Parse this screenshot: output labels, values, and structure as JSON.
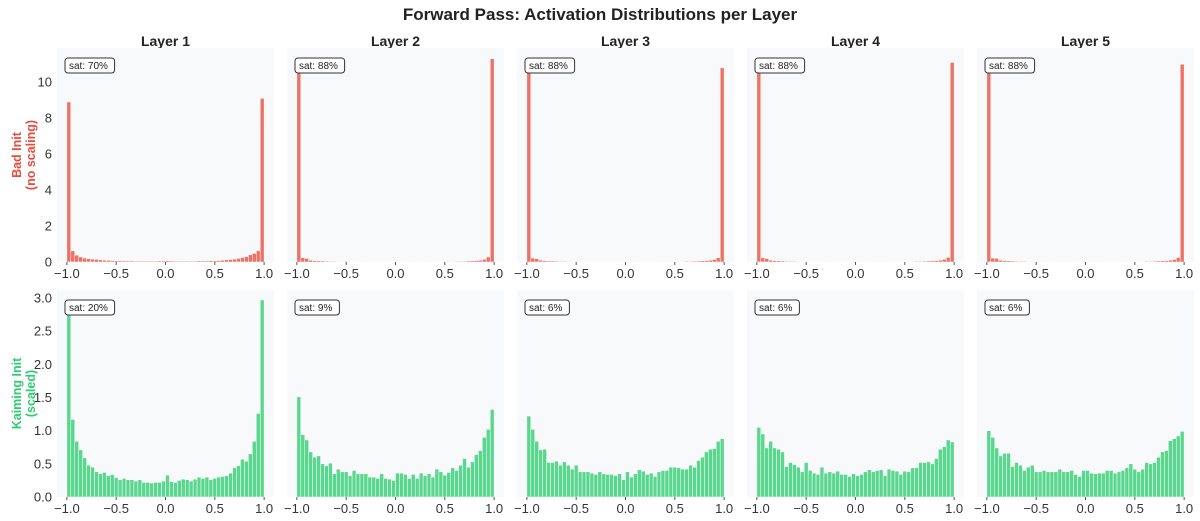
{
  "title": "Forward Pass: Activation Distributions per Layer",
  "colors": {
    "bad": "#e74c3c",
    "good": "#2ecc71",
    "plot_bg": "#f8f9fa"
  },
  "chart_data": {
    "type": "bar",
    "subtype": "histogram-grid",
    "grid": false,
    "bins": {
      "start": -1.0,
      "end": 1.0,
      "count": 50
    },
    "xlim": [
      -1.1,
      1.1
    ],
    "x_ticks": [
      "−1.0",
      "−0.5",
      "0.0",
      "0.5",
      "1.0"
    ],
    "x_tick_values": [
      -1.0,
      -0.5,
      0.0,
      0.5,
      1.0
    ],
    "columns": [
      "Layer 1",
      "Layer 2",
      "Layer 3",
      "Layer 4",
      "Layer 5"
    ],
    "rows": [
      {
        "label_line1": "Bad Init",
        "label_line2": "(no scaling)",
        "color": "#e74c3c",
        "ylim": [
          0,
          11.9
        ],
        "y_ticks": [
          "0",
          "2",
          "4",
          "6",
          "8",
          "10"
        ],
        "y_tick_values": [
          0,
          2,
          4,
          6,
          8,
          10
        ],
        "panels": [
          {
            "annotation": "sat: 70%",
            "values": [
              8.9,
              0.62,
              0.38,
              0.28,
              0.22,
              0.18,
              0.16,
              0.15,
              0.12,
              0.1,
              0.09,
              0.08,
              0.07,
              0.07,
              0.06,
              0.06,
              0.06,
              0.05,
              0.05,
              0.05,
              0.05,
              0.05,
              0.05,
              0.06,
              0.06,
              0.07,
              0.06,
              0.05,
              0.05,
              0.05,
              0.05,
              0.05,
              0.05,
              0.06,
              0.06,
              0.06,
              0.07,
              0.07,
              0.08,
              0.1,
              0.12,
              0.14,
              0.16,
              0.2,
              0.25,
              0.3,
              0.4,
              0.48,
              0.62,
              9.1
            ]
          },
          {
            "annotation": "sat: 88%",
            "values": [
              10.96,
              0.24,
              0.2,
              0.1,
              0.08,
              0.07,
              0.06,
              0.05,
              0.04,
              0.04,
              0.03,
              0.03,
              0.04,
              0.03,
              0.03,
              0.02,
              0.03,
              0.03,
              0.02,
              0.03,
              0.03,
              0.03,
              0.02,
              0.03,
              0.03,
              0.03,
              0.03,
              0.02,
              0.03,
              0.03,
              0.03,
              0.02,
              0.03,
              0.03,
              0.03,
              0.03,
              0.02,
              0.03,
              0.03,
              0.03,
              0.04,
              0.04,
              0.05,
              0.06,
              0.07,
              0.08,
              0.1,
              0.15,
              0.28,
              11.3
            ]
          },
          {
            "annotation": "sat: 88%",
            "values": [
              10.9,
              0.22,
              0.18,
              0.1,
              0.08,
              0.06,
              0.06,
              0.05,
              0.04,
              0.04,
              0.03,
              0.03,
              0.03,
              0.03,
              0.02,
              0.03,
              0.03,
              0.03,
              0.02,
              0.03,
              0.03,
              0.03,
              0.03,
              0.03,
              0.02,
              0.03,
              0.03,
              0.03,
              0.03,
              0.03,
              0.02,
              0.03,
              0.03,
              0.03,
              0.03,
              0.03,
              0.03,
              0.02,
              0.03,
              0.03,
              0.04,
              0.04,
              0.05,
              0.06,
              0.07,
              0.08,
              0.1,
              0.14,
              0.24,
              10.8
            ]
          },
          {
            "annotation": "sat: 88%",
            "values": [
              10.8,
              0.23,
              0.19,
              0.1,
              0.08,
              0.07,
              0.06,
              0.05,
              0.04,
              0.04,
              0.03,
              0.03,
              0.03,
              0.03,
              0.03,
              0.02,
              0.03,
              0.03,
              0.03,
              0.03,
              0.02,
              0.03,
              0.03,
              0.03,
              0.03,
              0.03,
              0.03,
              0.03,
              0.02,
              0.03,
              0.03,
              0.03,
              0.03,
              0.03,
              0.03,
              0.02,
              0.03,
              0.03,
              0.03,
              0.03,
              0.04,
              0.04,
              0.05,
              0.06,
              0.07,
              0.08,
              0.1,
              0.15,
              0.26,
              11.1
            ]
          },
          {
            "annotation": "sat: 88%",
            "values": [
              10.9,
              0.22,
              0.2,
              0.1,
              0.08,
              0.07,
              0.06,
              0.05,
              0.04,
              0.04,
              0.03,
              0.03,
              0.03,
              0.03,
              0.03,
              0.03,
              0.02,
              0.03,
              0.03,
              0.03,
              0.03,
              0.03,
              0.03,
              0.02,
              0.03,
              0.03,
              0.03,
              0.03,
              0.03,
              0.03,
              0.03,
              0.02,
              0.03,
              0.03,
              0.03,
              0.03,
              0.03,
              0.03,
              0.02,
              0.03,
              0.04,
              0.04,
              0.05,
              0.06,
              0.07,
              0.08,
              0.1,
              0.14,
              0.25,
              11.0
            ]
          }
        ]
      },
      {
        "label_line1": "Kaiming Init",
        "label_line2": "(scaled)",
        "color": "#2ecc71",
        "ylim": [
          0,
          3.12
        ],
        "y_ticks": [
          "0.0",
          "0.5",
          "1.0",
          "1.5",
          "2.0",
          "2.5",
          "3.0"
        ],
        "y_tick_values": [
          0,
          0.5,
          1.0,
          1.5,
          2.0,
          2.5,
          3.0
        ],
        "panels": [
          {
            "annotation": "sat: 20%",
            "values": [
              2.9,
              1.17,
              0.84,
              0.71,
              0.59,
              0.48,
              0.45,
              0.38,
              0.35,
              0.37,
              0.32,
              0.34,
              0.29,
              0.26,
              0.28,
              0.26,
              0.26,
              0.24,
              0.26,
              0.22,
              0.22,
              0.21,
              0.22,
              0.22,
              0.24,
              0.33,
              0.23,
              0.22,
              0.25,
              0.27,
              0.26,
              0.24,
              0.27,
              0.3,
              0.28,
              0.3,
              0.26,
              0.28,
              0.3,
              0.31,
              0.32,
              0.36,
              0.44,
              0.47,
              0.57,
              0.54,
              0.65,
              0.84,
              1.26,
              2.97
            ]
          },
          {
            "annotation": "sat: 9%",
            "values": [
              1.51,
              0.94,
              0.86,
              0.68,
              0.6,
              0.62,
              0.5,
              0.47,
              0.51,
              0.35,
              0.42,
              0.38,
              0.38,
              0.32,
              0.4,
              0.35,
              0.35,
              0.35,
              0.3,
              0.3,
              0.28,
              0.35,
              0.28,
              0.27,
              0.25,
              0.36,
              0.36,
              0.34,
              0.28,
              0.34,
              0.28,
              0.36,
              0.32,
              0.35,
              0.3,
              0.42,
              0.38,
              0.33,
              0.37,
              0.44,
              0.4,
              0.48,
              0.58,
              0.45,
              0.53,
              0.64,
              0.7,
              0.9,
              1.02,
              1.32
            ]
          },
          {
            "annotation": "sat: 6%",
            "values": [
              1.22,
              1.02,
              0.84,
              0.71,
              0.72,
              0.52,
              0.52,
              0.54,
              0.48,
              0.53,
              0.48,
              0.42,
              0.48,
              0.38,
              0.38,
              0.38,
              0.36,
              0.34,
              0.38,
              0.35,
              0.34,
              0.34,
              0.32,
              0.35,
              0.26,
              0.38,
              0.3,
              0.35,
              0.41,
              0.39,
              0.34,
              0.36,
              0.31,
              0.38,
              0.4,
              0.4,
              0.45,
              0.45,
              0.44,
              0.42,
              0.42,
              0.48,
              0.45,
              0.55,
              0.6,
              0.68,
              0.72,
              0.73,
              0.84,
              0.88
            ]
          },
          {
            "annotation": "sat: 6%",
            "values": [
              1.05,
              0.95,
              0.74,
              0.84,
              0.74,
              0.72,
              0.68,
              0.46,
              0.52,
              0.49,
              0.45,
              0.38,
              0.52,
              0.4,
              0.36,
              0.34,
              0.45,
              0.36,
              0.38,
              0.36,
              0.39,
              0.34,
              0.34,
              0.31,
              0.35,
              0.32,
              0.34,
              0.38,
              0.41,
              0.38,
              0.4,
              0.41,
              0.32,
              0.42,
              0.4,
              0.39,
              0.34,
              0.39,
              0.38,
              0.44,
              0.44,
              0.52,
              0.52,
              0.53,
              0.5,
              0.58,
              0.72,
              0.76,
              0.86,
              0.83
            ]
          },
          {
            "annotation": "sat: 6%",
            "values": [
              1.0,
              0.9,
              0.74,
              0.62,
              0.66,
              0.66,
              0.46,
              0.52,
              0.48,
              0.4,
              0.45,
              0.48,
              0.38,
              0.38,
              0.4,
              0.38,
              0.38,
              0.38,
              0.42,
              0.38,
              0.38,
              0.4,
              0.34,
              0.31,
              0.4,
              0.4,
              0.36,
              0.35,
              0.36,
              0.36,
              0.4,
              0.4,
              0.36,
              0.38,
              0.4,
              0.44,
              0.5,
              0.42,
              0.38,
              0.42,
              0.52,
              0.5,
              0.52,
              0.6,
              0.68,
              0.7,
              0.85,
              0.88,
              0.92,
              0.99
            ]
          }
        ]
      }
    ]
  }
}
